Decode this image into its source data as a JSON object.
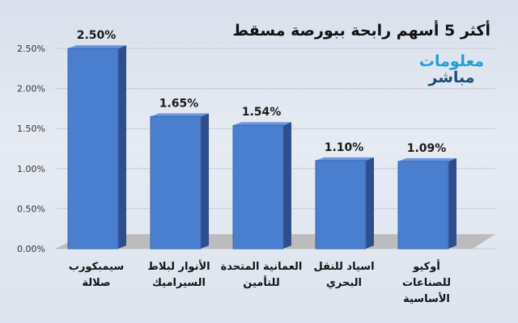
{
  "chart_data": {
    "type": "bar",
    "title": "أكثر 5 أسهم رابحة ببورصة مسقط",
    "categories": [
      [
        "سيمبكورب",
        "صلالة"
      ],
      [
        "الأنوار لبلاط",
        "السيراميك"
      ],
      [
        "العمانية المتحدة",
        "للتأمين"
      ],
      [
        "اسياد للنقل",
        "البحري"
      ],
      [
        "أوكيو",
        "للصناعات",
        "الأساسية"
      ]
    ],
    "values": [
      2.5,
      1.65,
      1.54,
      1.1,
      1.09
    ],
    "data_labels": [
      "2.50%",
      "1.65%",
      "1.54%",
      "1.10%",
      "1.09%"
    ],
    "y_ticks": [
      "0.00%",
      "0.50%",
      "1.00%",
      "1.50%",
      "2.00%",
      "2.50%"
    ],
    "ylim": [
      0,
      2.5
    ],
    "grid": true,
    "legend": "none",
    "bar_color": "#4a7fd0",
    "bar_side_color": "#2e4f8e",
    "bar_top_color": "#6b98de"
  },
  "logo": {
    "line1": "معلومات",
    "line2": "مباشر"
  }
}
